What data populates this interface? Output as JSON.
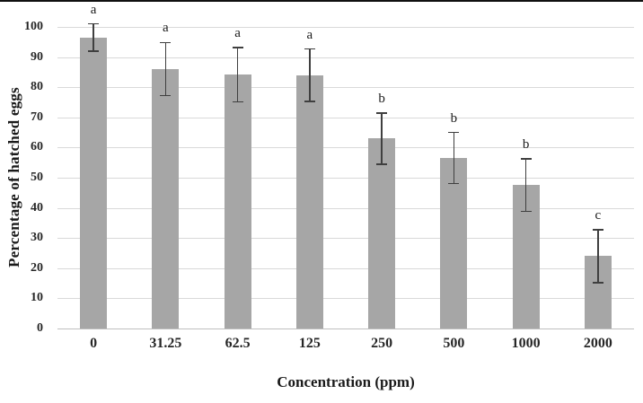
{
  "chart_data": {
    "type": "bar",
    "title": "",
    "xlabel": "Concentration (ppm)",
    "ylabel": "Percentage of hatched eggs",
    "ylim": [
      0,
      100
    ],
    "yticks": [
      0,
      10,
      20,
      30,
      40,
      50,
      60,
      70,
      80,
      90,
      100
    ],
    "categories": [
      "0",
      "31.25",
      "62.5",
      "125",
      "250",
      "500",
      "1000",
      "2000"
    ],
    "series": [
      {
        "name": "Percentage of hatched eggs",
        "values": [
          96.5,
          86.0,
          84.2,
          84.0,
          63.0,
          56.5,
          47.5,
          24.0
        ]
      }
    ],
    "error_bars": [
      4.5,
      8.8,
      9.0,
      8.7,
      8.5,
      8.5,
      8.7,
      8.8
    ],
    "significance_letters": [
      "a",
      "a",
      "a",
      "a",
      "b",
      "b",
      "b",
      "c"
    ],
    "grid": true,
    "legend_position": "none",
    "bar_color": "#a6a6a6",
    "error_color": "#3f3f3f",
    "gridline_color": "#d9d9d9",
    "axis_line_color": "#bfbfbf"
  }
}
